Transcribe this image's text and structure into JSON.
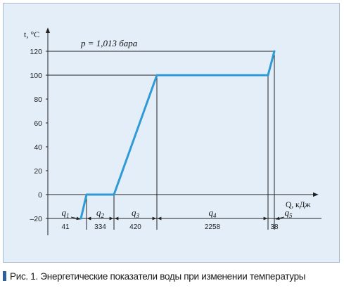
{
  "caption": {
    "text": "Рис. 1. Энергетические показатели воды при изменении температуры"
  },
  "chart_data": {
    "type": "line",
    "ylabel": "t, °C",
    "xlabel": "Q, кДж",
    "annotation": "p = 1,013 бара",
    "y_ticks": [
      "120",
      "100",
      "80",
      "60",
      "40",
      "20",
      "0",
      "–20"
    ],
    "y_tick_values": [
      120,
      100,
      80,
      60,
      40,
      20,
      0,
      -20
    ],
    "ylim": [
      -20,
      120
    ],
    "xlim": [
      0,
      3091
    ],
    "segments": [
      {
        "label": "q",
        "sub": "1",
        "energy": "41",
        "value": 41
      },
      {
        "label": "q",
        "sub": "2",
        "energy": "334",
        "value": 334
      },
      {
        "label": "q",
        "sub": "3",
        "energy": "420",
        "value": 420
      },
      {
        "label": "q",
        "sub": "4",
        "energy": "2258",
        "value": 2258
      },
      {
        "label": "q",
        "sub": "5",
        "energy": "38",
        "value": 38
      }
    ],
    "series": [
      {
        "points": [
          [
            0,
            -20
          ],
          [
            41,
            0
          ],
          [
            375,
            0
          ],
          [
            795,
            100
          ],
          [
            3053,
            100
          ],
          [
            3091,
            120
          ]
        ]
      }
    ],
    "line_color": "#2f9ad6",
    "grid": false
  }
}
